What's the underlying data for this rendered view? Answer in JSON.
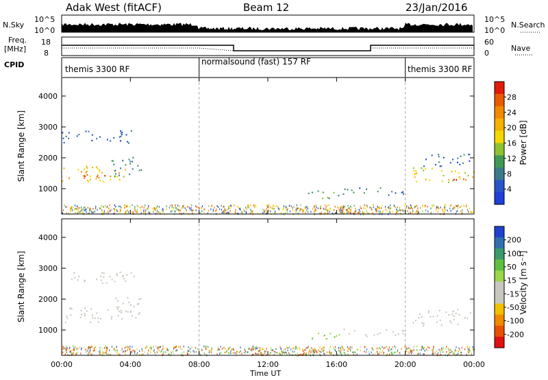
{
  "header": {
    "station": "Adak West (fitACF)",
    "beam": "Beam 12",
    "date": "23/Jan/2016"
  },
  "strip_labels": {
    "nsky": "N.Sky",
    "nsearch": "N.Search",
    "freq_line1": "Freq.",
    "freq_line2": "[MHz]",
    "nave": "Nave",
    "cpid": "CPID",
    "nsky_hi": "10^5",
    "nsky_lo": "10^0",
    "nsearch_hi": "10^5",
    "nsearch_lo": "10^0",
    "freq_hi": "18",
    "freq_lo": "8",
    "nave_hi": "60",
    "nave_lo": "0"
  },
  "cpid_segments": [
    {
      "label": "themis 3300 RF",
      "start_h": 0
    },
    {
      "label": "normalsound (fast) 157 RF",
      "start_h": 8
    },
    {
      "label": "themis 3300 RF",
      "start_h": 20
    }
  ],
  "axes": {
    "x_ticks": [
      "00:00",
      "04:00",
      "08:00",
      "12:00",
      "16:00",
      "20:00",
      "00:00"
    ],
    "x_label": "Time UT",
    "y_ticks": [
      "1000",
      "2000",
      "3000",
      "4000"
    ],
    "y_label": "Slant Range [km]"
  },
  "power_colorbar": {
    "title": "Power [dB]",
    "ticks": [
      "4",
      "8",
      "12",
      "16",
      "20",
      "24",
      "28"
    ],
    "colors": [
      "#1f3fd9",
      "#2a55c8",
      "#3c7a8a",
      "#3f9a55",
      "#8fc230",
      "#f5d800",
      "#f5b000",
      "#f08a00",
      "#ea5a00",
      "#e21a0a"
    ]
  },
  "velocity_colorbar": {
    "title": "Velocity [m s⁻¹]",
    "ticks": [
      "200",
      "100",
      "50",
      "15",
      "-15",
      "-50",
      "-100",
      "-200"
    ],
    "colors": [
      "#2040d0",
      "#2f6fb0",
      "#3a9a6a",
      "#5fc040",
      "#9ad64a",
      "#c8c8c0",
      "#c8c8c0",
      "#f2c000",
      "#f08a00",
      "#ea5000",
      "#e01010"
    ]
  },
  "chart_data": [
    {
      "type": "heatmap",
      "title": "Power [dB]",
      "xlabel": "Time UT",
      "ylabel": "Slant Range [km]",
      "xlim": [
        0,
        24
      ],
      "ylim": [
        180,
        4600
      ],
      "regions": [
        {
          "t0": 0.0,
          "t1": 3.7,
          "r0": 1250,
          "r1": 1750,
          "level": 20
        },
        {
          "t0": 0.3,
          "t1": 2.9,
          "r0": 1350,
          "r1": 1550,
          "level": 26
        },
        {
          "t0": 2.8,
          "t1": 4.6,
          "r0": 1400,
          "r1": 2100,
          "level": 10
        },
        {
          "t0": 0.0,
          "t1": 4.2,
          "r0": 2500,
          "r1": 2900,
          "level": 5
        },
        {
          "t0": 14.3,
          "t1": 16.2,
          "r0": 700,
          "r1": 1000,
          "level": 12
        },
        {
          "t0": 16.2,
          "t1": 20.0,
          "r0": 800,
          "r1": 1050,
          "level": 9
        },
        {
          "t0": 14.0,
          "t1": 19.0,
          "r0": 200,
          "r1": 400,
          "level": 24
        },
        {
          "t0": 20.4,
          "t1": 24.0,
          "r0": 1200,
          "r1": 1700,
          "level": 18
        },
        {
          "t0": 22.6,
          "t1": 23.8,
          "r0": 1300,
          "r1": 1500,
          "level": 27
        },
        {
          "t0": 21.0,
          "t1": 23.8,
          "r0": 1700,
          "r1": 2150,
          "level": 7
        }
      ]
    },
    {
      "type": "heatmap",
      "title": "Velocity [m s⁻¹]",
      "xlabel": "Time UT",
      "ylabel": "Slant Range [km]",
      "xlim": [
        0,
        24
      ],
      "ylim": [
        180,
        4600
      ],
      "regions": [
        {
          "t0": 0.0,
          "t1": 3.8,
          "r0": 1250,
          "r1": 1750,
          "velocity": 0
        },
        {
          "t0": 2.8,
          "t1": 4.6,
          "r0": 1400,
          "r1": 2100,
          "velocity": 0
        },
        {
          "t0": 0.0,
          "t1": 4.2,
          "r0": 2500,
          "r1": 2900,
          "velocity": 0
        },
        {
          "t0": 14.3,
          "t1": 16.2,
          "r0": 700,
          "r1": 1000,
          "velocity": 40
        },
        {
          "t0": 16.2,
          "t1": 20.0,
          "r0": 800,
          "r1": 1050,
          "velocity": 0
        },
        {
          "t0": 20.4,
          "t1": 24.0,
          "r0": 1150,
          "r1": 1700,
          "velocity": 0
        },
        {
          "t0": 11.6,
          "t1": 19.5,
          "r0": 200,
          "r1": 320,
          "velocity": 60
        }
      ]
    }
  ]
}
